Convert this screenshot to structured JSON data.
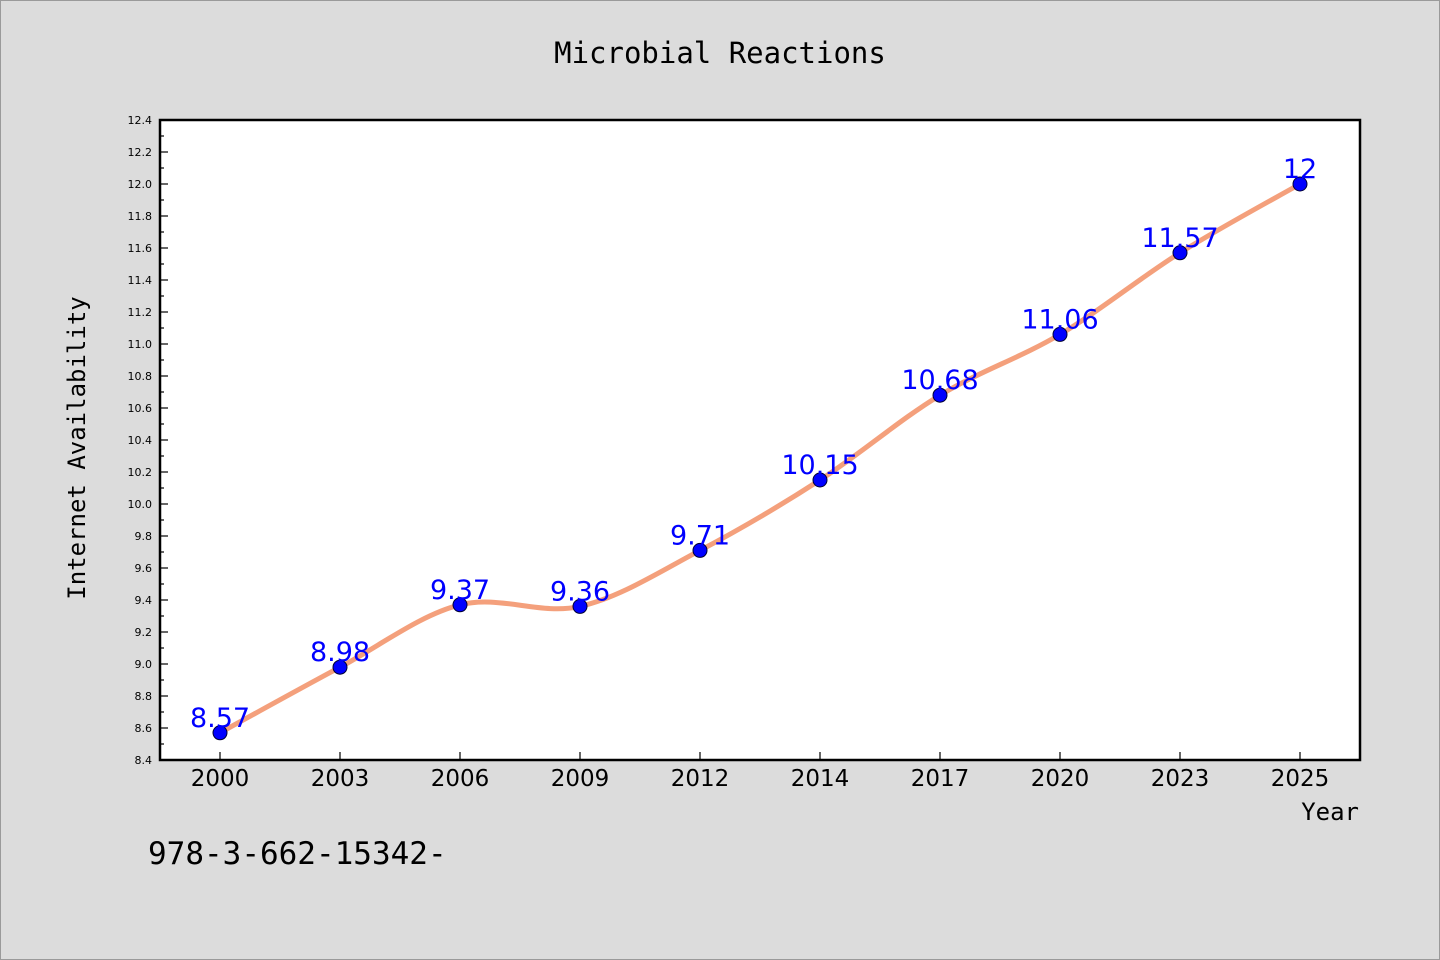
{
  "chart_data": {
    "type": "line",
    "title": "Microbial Reactions",
    "xlabel": "Year",
    "ylabel": "Internet Availability",
    "categories": [
      "2000",
      "2003",
      "2006",
      "2009",
      "2012",
      "2014",
      "2017",
      "2020",
      "2023",
      "2025"
    ],
    "series": [
      {
        "values": [
          8.57,
          8.98,
          9.37,
          9.36,
          9.71,
          10.15,
          10.68,
          11.06,
          11.57,
          12
        ],
        "labels": [
          "8.57",
          "8.98",
          "9.37",
          "9.36",
          "9.71",
          "10.15",
          "10.68",
          "11.06",
          "11.57",
          "12"
        ],
        "color": "#f4a07c",
        "marker_color": "#0000ff"
      }
    ],
    "ylim": [
      8.4,
      12.4
    ],
    "yticks": [
      "8.4",
      "8.6",
      "8.8",
      "9.0",
      "9.2",
      "9.4",
      "9.6",
      "9.8",
      "10.0",
      "10.2",
      "10.4",
      "10.6",
      "10.8",
      "11.0",
      "11.2",
      "11.4",
      "11.6",
      "11.8",
      "12.0",
      "12.2",
      "12.4"
    ],
    "grid": false,
    "legend": "none"
  },
  "annotation": "978-3-662-15342-",
  "colors": {
    "background": "#dcdcdc",
    "plot_background": "#ffffff",
    "line": "#f4a07c",
    "marker": "#0000ff",
    "data_label": "#0000ff"
  }
}
